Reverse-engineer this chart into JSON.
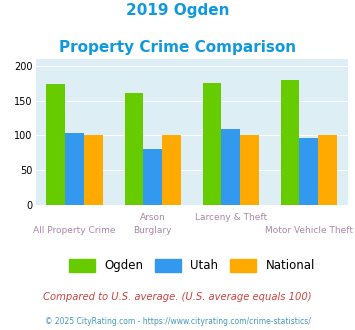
{
  "title_line1": "2019 Ogden",
  "title_line2": "Property Crime Comparison",
  "ogden": [
    175,
    162,
    176,
    180
  ],
  "utah": [
    103,
    80,
    109,
    97
  ],
  "national": [
    100,
    100,
    100,
    100
  ],
  "ogden_color": "#66cc00",
  "utah_color": "#3399ee",
  "national_color": "#ffaa00",
  "bg_color": "#ddeef5",
  "title_color": "#1199dd",
  "label_color": "#aa88aa",
  "ylim": [
    0,
    210
  ],
  "yticks": [
    0,
    50,
    100,
    150,
    200
  ],
  "top_labels": [
    "",
    "Arson",
    "Larceny & Theft",
    ""
  ],
  "bottom_labels": [
    "All Property Crime",
    "Burglary",
    "",
    "Motor Vehicle Theft"
  ],
  "footnote": "Compared to U.S. average. (U.S. average equals 100)",
  "credit": "© 2025 CityRating.com - https://www.cityrating.com/crime-statistics/",
  "footnote_color": "#cc4444",
  "credit_color": "#4499bb"
}
